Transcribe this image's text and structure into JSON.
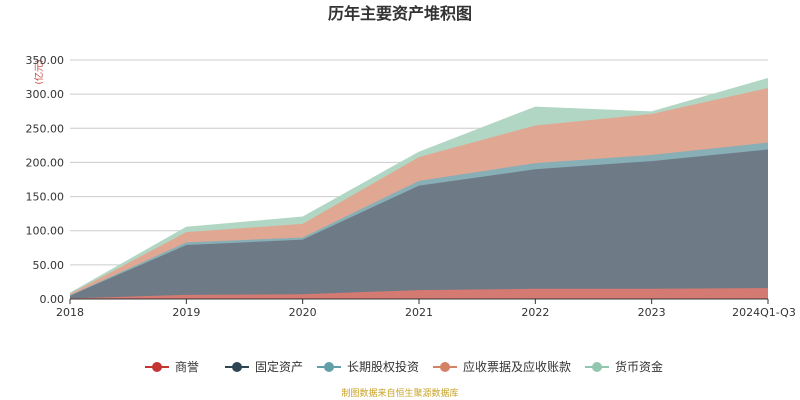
{
  "chart_data": {
    "type": "area",
    "stacked": true,
    "title": "历年主要资产堆积图",
    "unit_label": "(亿元)",
    "categories": [
      "2018",
      "2019",
      "2020",
      "2021",
      "2022",
      "2023",
      "2024Q1-Q3"
    ],
    "ylim": [
      0,
      350
    ],
    "yticks": [
      "0.00",
      "50.00",
      "100.00",
      "150.00",
      "200.00",
      "250.00",
      "300.00",
      "350.00"
    ],
    "grid": true,
    "legend_position": "bottom",
    "series": [
      {
        "name": "商誉",
        "color": "#c23531",
        "fill": "#d47a72",
        "values": [
          1,
          6,
          7,
          13,
          15,
          15,
          16
        ]
      },
      {
        "name": "固定资产",
        "color": "#2f4554",
        "fill": "#6e7b87",
        "values": [
          4,
          73,
          80,
          153,
          175,
          187,
          203
        ]
      },
      {
        "name": "长期股权投资",
        "color": "#61a0a8",
        "fill": "#88aeb6",
        "values": [
          0.5,
          4,
          3,
          7,
          9,
          9,
          10
        ]
      },
      {
        "name": "应收票据及应收账款",
        "color": "#d48265",
        "fill": "#e0a892",
        "values": [
          2,
          15,
          20,
          35,
          55,
          60,
          80
        ]
      },
      {
        "name": "货币资金",
        "color": "#91c7ae",
        "fill": "#b1d6c4",
        "values": [
          1,
          7,
          10,
          7,
          27,
          3,
          14
        ]
      }
    ]
  },
  "source_note": "制图数据来自恒生聚源数据库"
}
